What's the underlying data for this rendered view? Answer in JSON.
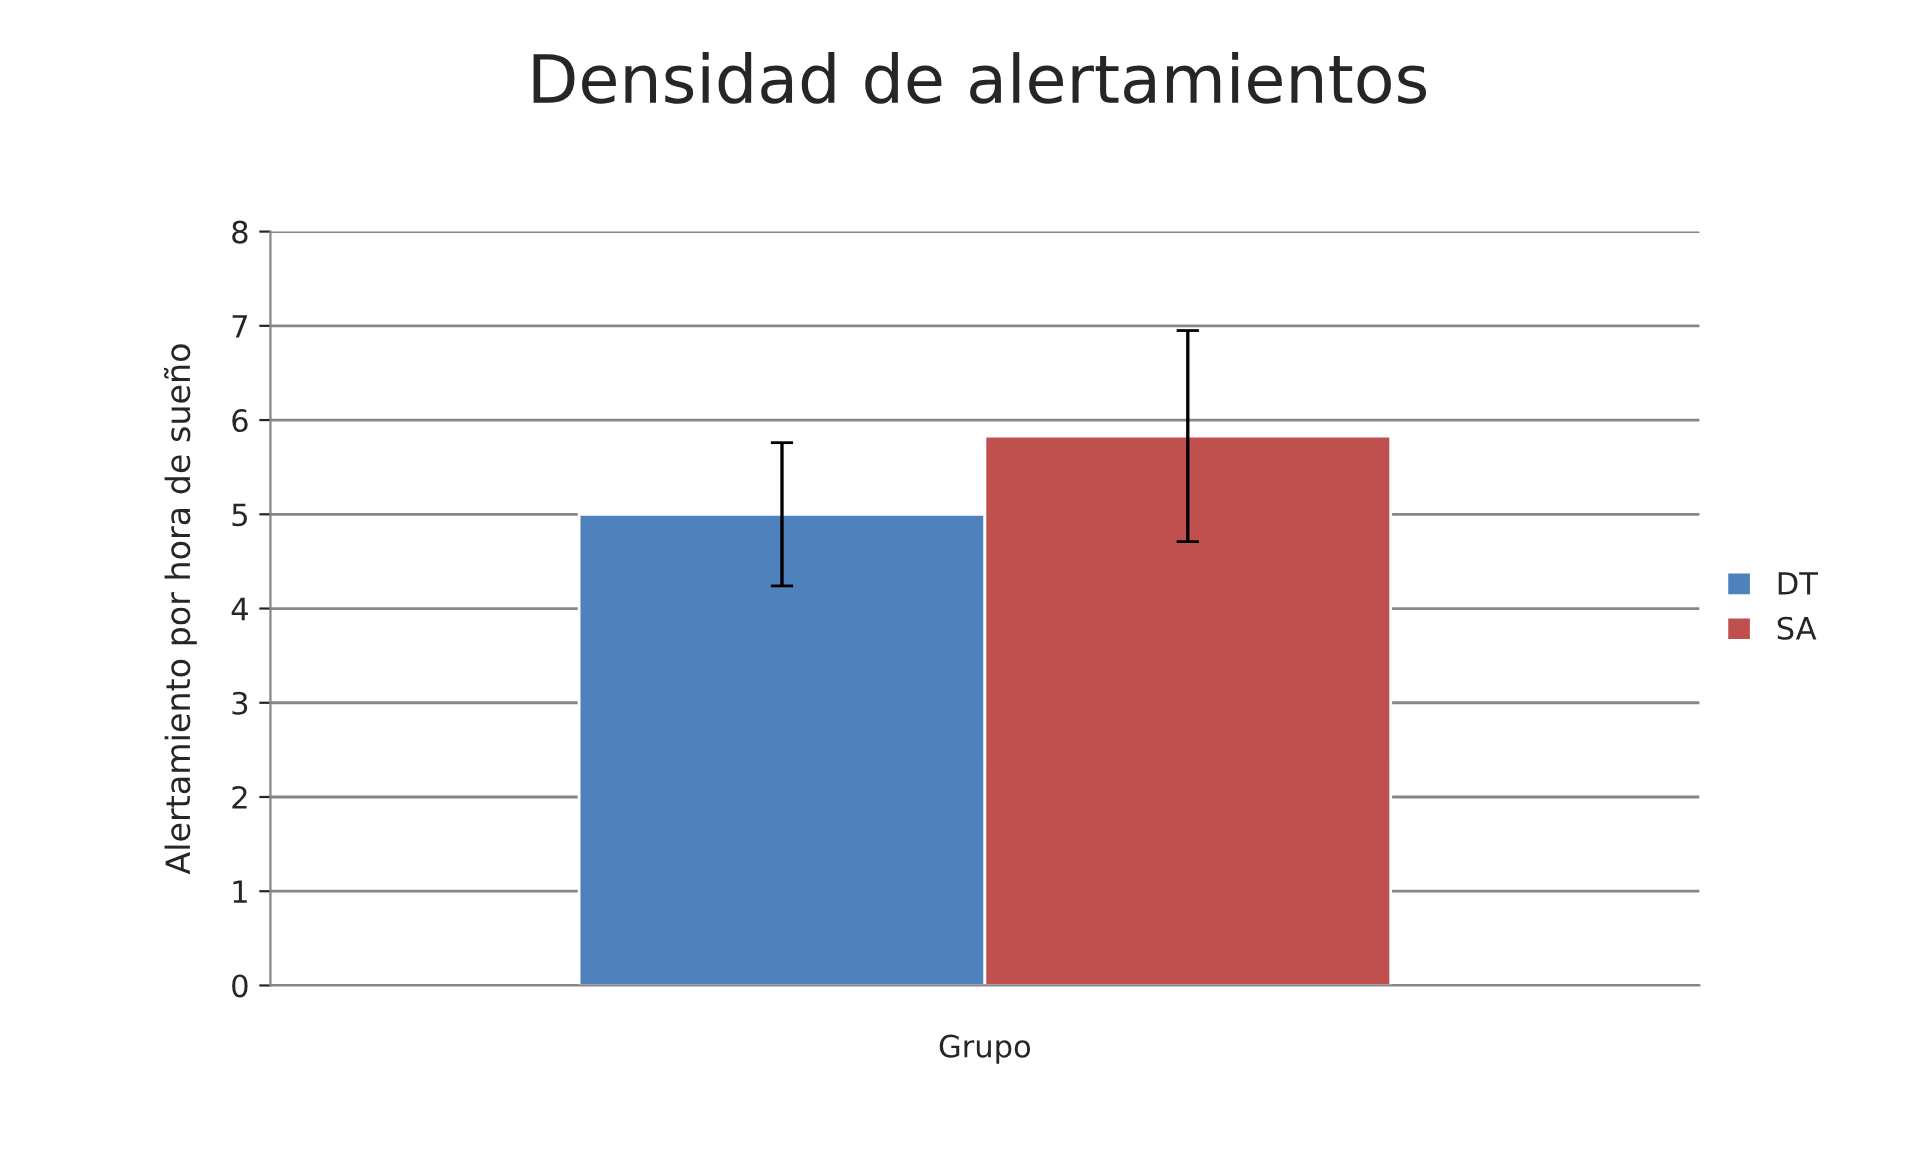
{
  "chart_data": {
    "type": "bar",
    "title": "Densidad de alertamientos",
    "xlabel": "Grupo",
    "ylabel": "Alertamiento por hora de sueño",
    "categories": [
      null
    ],
    "series": [
      {
        "name": "DT",
        "color": "#4f81bd",
        "values": [
          5.0
        ],
        "errors": [
          0.76
        ]
      },
      {
        "name": "SA",
        "color": "#c0504d",
        "values": [
          5.83
        ],
        "errors": [
          1.12
        ]
      }
    ],
    "ylim": [
      0,
      8
    ],
    "yticks": [
      0,
      1,
      2,
      3,
      4,
      5,
      6,
      7,
      8
    ],
    "grid": "y",
    "legend": "right"
  }
}
